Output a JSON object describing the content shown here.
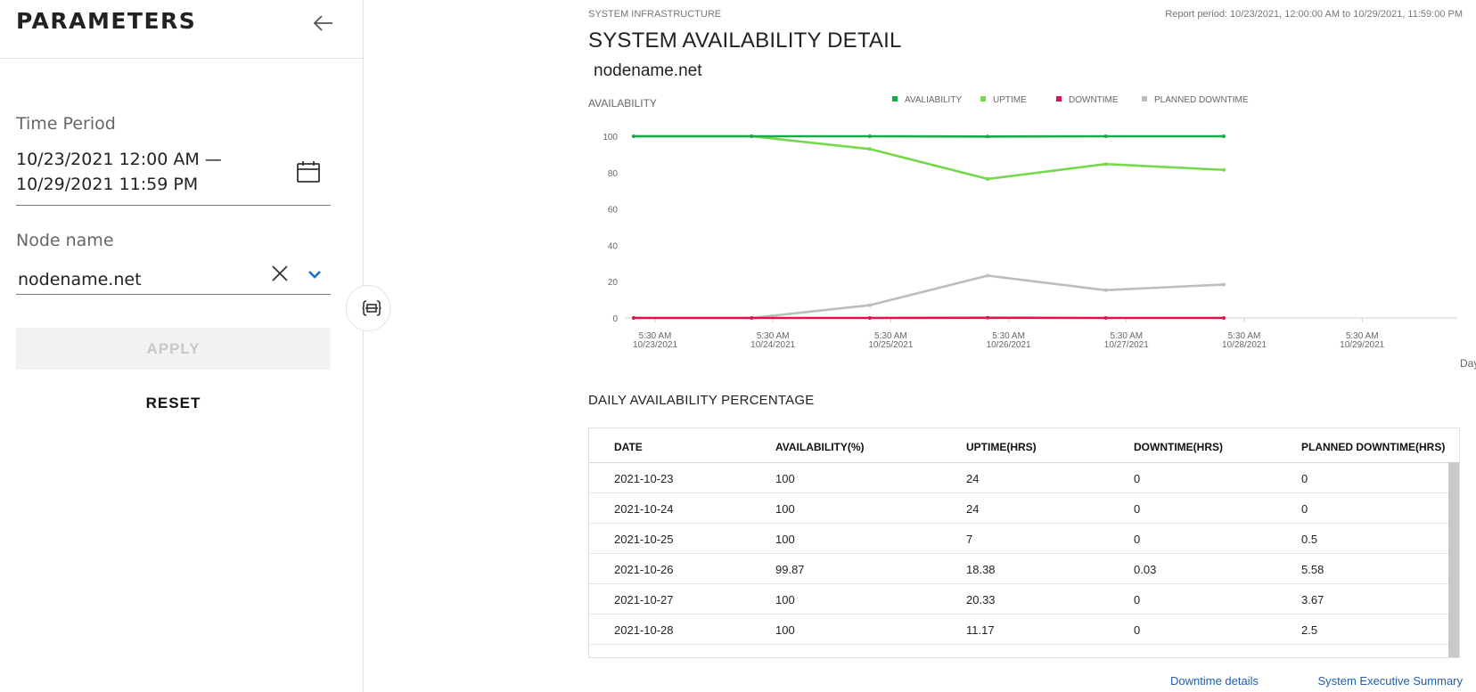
{
  "sidebar": {
    "title": "PARAMETERS",
    "time_period_label": "Time Period",
    "date_line1": "10/23/2021 12:00 AM —",
    "date_line2": "10/29/2021 11:59 PM",
    "node_name_label": "Node name",
    "node_value": "nodename.net",
    "apply_label": "APPLY",
    "reset_label": "RESET"
  },
  "icons": {
    "back": "arrow-left-icon",
    "calendar": "calendar-icon",
    "clear": "close-icon",
    "dropdown": "chevron-down-icon",
    "collapse": "collapse-panel-icon"
  },
  "header": {
    "subhead": "SYSTEM INFRASTRUCTURE",
    "report_period": "Report period: 10/23/2021, 12:00:00 AM to 10/29/2021, 11:59:00 PM",
    "title": "SYSTEM AVAILABILITY DETAIL",
    "node": "nodename.net"
  },
  "chart_data": {
    "type": "line",
    "ylabel": "AVAILABILITY",
    "xlabel": "Day",
    "ylim": [
      0,
      100
    ],
    "yticks": [
      0,
      20,
      40,
      60,
      80,
      100
    ],
    "legend_position": "top",
    "x_ticks": [
      {
        "time": "5:30 AM",
        "date": "10/23/2021"
      },
      {
        "time": "5:30 AM",
        "date": "10/24/2021"
      },
      {
        "time": "5:30 AM",
        "date": "10/25/2021"
      },
      {
        "time": "5:30 AM",
        "date": "10/26/2021"
      },
      {
        "time": "5:30 AM",
        "date": "10/27/2021"
      },
      {
        "time": "5:30 AM",
        "date": "10/28/2021"
      },
      {
        "time": "5:30 AM",
        "date": "10/29/2021"
      }
    ],
    "series": [
      {
        "name": "AVALIABILITY",
        "color": "#1aa84a",
        "values": [
          100,
          100,
          100,
          99.87,
          100,
          100
        ]
      },
      {
        "name": "UPTIME",
        "color": "#76d84d",
        "values": [
          100,
          100,
          93,
          76.5,
          84.7,
          81.5
        ]
      },
      {
        "name": "DOWNTIME",
        "color": "#e0144c",
        "values": [
          0,
          0,
          0,
          0.1,
          0,
          0
        ]
      },
      {
        "name": "PLANNED DOWNTIME",
        "color": "#bdbdbd",
        "values": [
          0,
          0,
          7,
          23.3,
          15.3,
          18.4
        ]
      }
    ]
  },
  "table": {
    "title": "DAILY AVAILABILITY PERCENTAGE",
    "headers": [
      "DATE",
      "AVAILABILITY(%)",
      "UPTIME(HRS)",
      "DOWNTIME(HRS)",
      "PLANNED DOWNTIME(HRS)"
    ],
    "rows": [
      [
        "2021-10-23",
        "100",
        "24",
        "0",
        "0"
      ],
      [
        "2021-10-24",
        "100",
        "24",
        "0",
        "0"
      ],
      [
        "2021-10-25",
        "100",
        "7",
        "0",
        "0.5"
      ],
      [
        "2021-10-26",
        "99.87",
        "18.38",
        "0.03",
        "5.58"
      ],
      [
        "2021-10-27",
        "100",
        "20.33",
        "0",
        "3.67"
      ],
      [
        "2021-10-28",
        "100",
        "11.17",
        "0",
        "2.5"
      ]
    ]
  },
  "links": {
    "downtime": "Downtime details",
    "executive": "System Executive Summary"
  }
}
